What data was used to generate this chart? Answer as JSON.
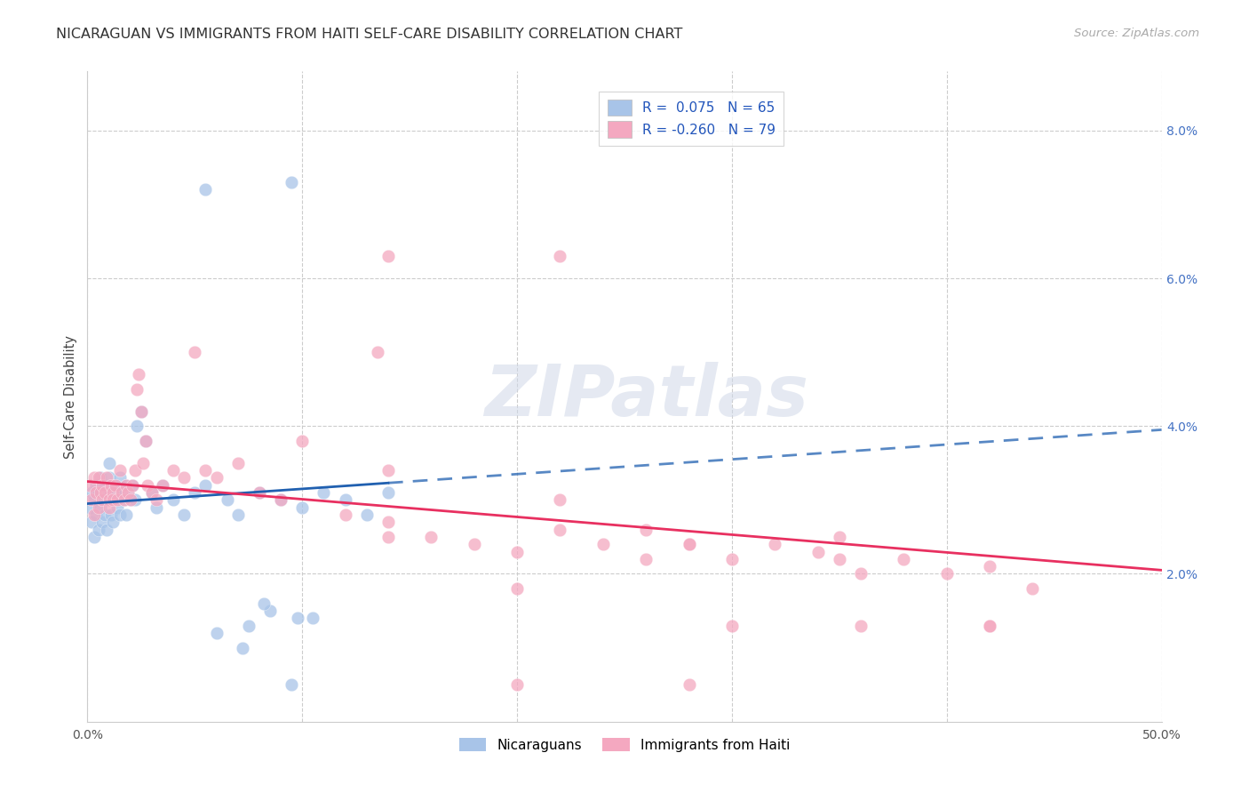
{
  "title": "NICARAGUAN VS IMMIGRANTS FROM HAITI SELF-CARE DISABILITY CORRELATION CHART",
  "source": "Source: ZipAtlas.com",
  "ylabel": "Self-Care Disability",
  "legend_label1": "Nicaraguans",
  "legend_label2": "Immigrants from Haiti",
  "R1": 0.075,
  "N1": 65,
  "R2": -0.26,
  "N2": 79,
  "color1": "#a8c4e8",
  "color2": "#f4a8c0",
  "trend1_color": "#2060b0",
  "trend2_color": "#e83060",
  "background": "#ffffff",
  "xlim": [
    0.0,
    50.0
  ],
  "ylim": [
    0.0,
    8.8
  ],
  "yticks": [
    2.0,
    4.0,
    6.0,
    8.0
  ],
  "xticks": [
    0,
    10,
    20,
    30,
    40,
    50
  ],
  "nic_x": [
    0.1,
    0.2,
    0.2,
    0.3,
    0.3,
    0.4,
    0.4,
    0.5,
    0.5,
    0.6,
    0.6,
    0.7,
    0.7,
    0.8,
    0.8,
    0.9,
    0.9,
    1.0,
    1.0,
    1.1,
    1.1,
    1.2,
    1.2,
    1.3,
    1.4,
    1.4,
    1.5,
    1.5,
    1.6,
    1.7,
    1.8,
    1.8,
    1.9,
    2.0,
    2.1,
    2.2,
    2.3,
    2.5,
    2.7,
    3.0,
    3.2,
    3.5,
    4.0,
    4.5,
    5.0,
    5.5,
    6.5,
    7.0,
    8.0,
    9.0,
    10.0,
    11.0,
    12.0,
    13.0,
    14.0,
    5.5,
    9.5,
    7.5,
    10.5,
    6.0,
    8.5,
    9.5,
    7.2,
    9.8,
    8.2
  ],
  "nic_y": [
    2.9,
    3.1,
    2.7,
    3.0,
    2.5,
    3.2,
    2.8,
    3.1,
    2.6,
    3.3,
    2.9,
    3.0,
    2.7,
    3.2,
    2.8,
    3.1,
    2.6,
    3.3,
    3.5,
    3.0,
    2.8,
    3.2,
    2.7,
    3.1,
    3.0,
    2.9,
    3.3,
    2.8,
    3.1,
    3.0,
    3.2,
    2.8,
    3.1,
    3.0,
    3.2,
    3.0,
    4.0,
    4.2,
    3.8,
    3.1,
    2.9,
    3.2,
    3.0,
    2.8,
    3.1,
    3.2,
    3.0,
    2.8,
    3.1,
    3.0,
    2.9,
    3.1,
    3.0,
    2.8,
    3.1,
    7.2,
    7.3,
    1.3,
    1.4,
    1.2,
    1.5,
    0.5,
    1.0,
    1.4,
    1.6
  ],
  "hai_x": [
    0.1,
    0.2,
    0.3,
    0.3,
    0.4,
    0.5,
    0.5,
    0.6,
    0.7,
    0.7,
    0.8,
    0.9,
    1.0,
    1.0,
    1.1,
    1.2,
    1.2,
    1.3,
    1.4,
    1.5,
    1.6,
    1.7,
    1.8,
    1.9,
    2.0,
    2.1,
    2.2,
    2.3,
    2.4,
    2.5,
    2.6,
    2.7,
    2.8,
    3.0,
    3.2,
    3.5,
    4.0,
    4.5,
    5.0,
    5.5,
    6.0,
    7.0,
    8.0,
    9.0,
    10.0,
    12.0,
    14.0,
    16.0,
    18.0,
    20.0,
    22.0,
    24.0,
    26.0,
    28.0,
    30.0,
    32.0,
    34.0,
    36.0,
    38.0,
    40.0,
    42.0,
    44.0,
    13.5,
    22.0,
    28.0,
    35.0,
    42.0,
    14.0,
    20.0,
    26.0,
    35.0,
    42.0,
    20.0,
    28.0,
    14.0,
    36.0,
    22.0,
    30.0,
    14.0
  ],
  "hai_y": [
    3.2,
    3.0,
    3.3,
    2.8,
    3.1,
    3.3,
    2.9,
    3.1,
    3.0,
    3.2,
    3.1,
    3.3,
    3.0,
    2.9,
    3.2,
    3.1,
    3.0,
    3.2,
    3.0,
    3.4,
    3.1,
    3.0,
    3.2,
    3.1,
    3.0,
    3.2,
    3.4,
    4.5,
    4.7,
    4.2,
    3.5,
    3.8,
    3.2,
    3.1,
    3.0,
    3.2,
    3.4,
    3.3,
    5.0,
    3.4,
    3.3,
    3.5,
    3.1,
    3.0,
    3.8,
    2.8,
    2.7,
    2.5,
    2.4,
    2.3,
    2.6,
    2.4,
    2.2,
    2.4,
    2.2,
    2.4,
    2.3,
    2.0,
    2.2,
    2.0,
    2.1,
    1.8,
    5.0,
    3.0,
    2.4,
    2.5,
    1.3,
    2.5,
    1.8,
    2.6,
    2.2,
    1.3,
    0.5,
    0.5,
    6.3,
    1.3,
    6.3,
    1.3,
    3.4
  ]
}
